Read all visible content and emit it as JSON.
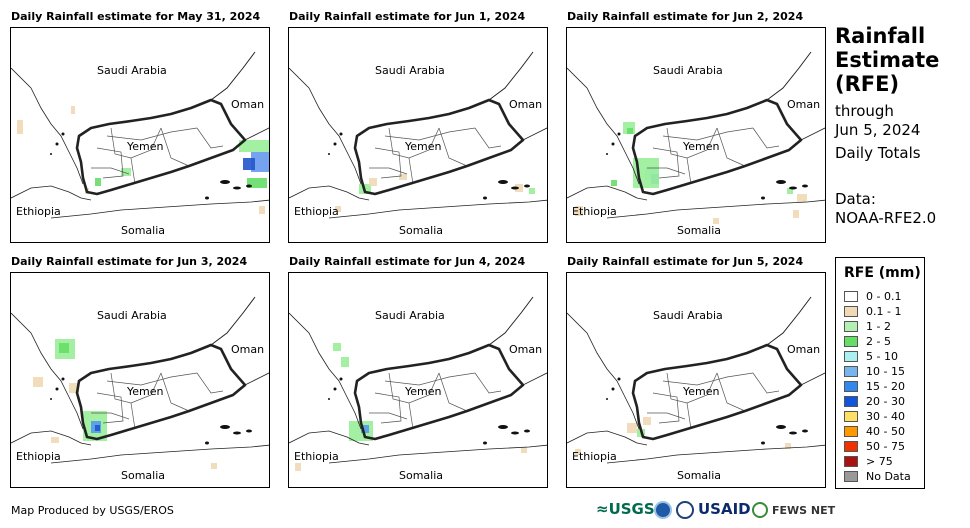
{
  "panels": [
    {
      "title": "Daily Rainfall estimate for May 31, 2024",
      "rain": [
        {
          "x": 240,
          "y": 124,
          "c": "#6699ee",
          "w": 22,
          "h": 20
        },
        {
          "x": 232,
          "y": 130,
          "c": "#2255cc",
          "w": 12,
          "h": 12
        },
        {
          "x": 228,
          "y": 112,
          "c": "#99ee99",
          "w": 30,
          "h": 12
        },
        {
          "x": 236,
          "y": 150,
          "c": "#66dd66",
          "w": 20,
          "h": 10
        },
        {
          "x": 84,
          "y": 150,
          "c": "#66dd66",
          "w": 6,
          "h": 8
        },
        {
          "x": 110,
          "y": 140,
          "c": "#99ee99",
          "w": 10,
          "h": 8
        },
        {
          "x": 6,
          "y": 92,
          "c": "#f0d9b5",
          "w": 6,
          "h": 14
        },
        {
          "x": 60,
          "y": 78,
          "c": "#f0d9b5",
          "w": 4,
          "h": 8
        },
        {
          "x": 74,
          "y": 160,
          "c": "#f0d9b5",
          "w": 4,
          "h": 6
        },
        {
          "x": 248,
          "y": 178,
          "c": "#f0d9b5",
          "w": 6,
          "h": 8
        }
      ]
    },
    {
      "title": "Daily Rainfall estimate for Jun 1, 2024",
      "rain": [
        {
          "x": 70,
          "y": 156,
          "c": "#99ee99",
          "w": 12,
          "h": 10
        },
        {
          "x": 80,
          "y": 150,
          "c": "#f0d9b5",
          "w": 8,
          "h": 8
        },
        {
          "x": 110,
          "y": 146,
          "c": "#f0d9b5",
          "w": 8,
          "h": 6
        },
        {
          "x": 240,
          "y": 160,
          "c": "#99ee99",
          "w": 6,
          "h": 6
        },
        {
          "x": 226,
          "y": 156,
          "c": "#f0d9b5",
          "w": 8,
          "h": 8
        },
        {
          "x": 46,
          "y": 178,
          "c": "#f0d9b5",
          "w": 6,
          "h": 6
        }
      ]
    },
    {
      "title": "Daily Rainfall estimate for Jun 2, 2024",
      "rain": [
        {
          "x": 78,
          "y": 140,
          "c": "#99eeee",
          "w": 14,
          "h": 12
        },
        {
          "x": 84,
          "y": 146,
          "c": "#5599ee",
          "w": 8,
          "h": 10
        },
        {
          "x": 66,
          "y": 130,
          "c": "#99ee99",
          "w": 26,
          "h": 30
        },
        {
          "x": 56,
          "y": 94,
          "c": "#99ee99",
          "w": 12,
          "h": 12
        },
        {
          "x": 60,
          "y": 100,
          "c": "#66dd66",
          "w": 6,
          "h": 6
        },
        {
          "x": 44,
          "y": 152,
          "c": "#66dd66",
          "w": 6,
          "h": 6
        },
        {
          "x": 8,
          "y": 178,
          "c": "#f0d9b5",
          "w": 8,
          "h": 10
        },
        {
          "x": 220,
          "y": 160,
          "c": "#99ee99",
          "w": 6,
          "h": 6
        },
        {
          "x": 230,
          "y": 166,
          "c": "#f0d9b5",
          "w": 10,
          "h": 8
        },
        {
          "x": 146,
          "y": 190,
          "c": "#f0d9b5",
          "w": 6,
          "h": 6
        },
        {
          "x": 226,
          "y": 182,
          "c": "#f0d9b5",
          "w": 6,
          "h": 8
        }
      ]
    },
    {
      "title": "Daily Rainfall estimate for Jun 3, 2024",
      "rain": [
        {
          "x": 72,
          "y": 138,
          "c": "#99ee99",
          "w": 24,
          "h": 30
        },
        {
          "x": 80,
          "y": 148,
          "c": "#5599ee",
          "w": 10,
          "h": 12
        },
        {
          "x": 84,
          "y": 152,
          "c": "#2255cc",
          "w": 5,
          "h": 6
        },
        {
          "x": 44,
          "y": 66,
          "c": "#99ee99",
          "w": 20,
          "h": 20
        },
        {
          "x": 48,
          "y": 70,
          "c": "#66dd66",
          "w": 10,
          "h": 10
        },
        {
          "x": 22,
          "y": 104,
          "c": "#f0d9b5",
          "w": 10,
          "h": 10
        },
        {
          "x": 58,
          "y": 110,
          "c": "#f0d9b5",
          "w": 10,
          "h": 10
        },
        {
          "x": 40,
          "y": 164,
          "c": "#f0d9b5",
          "w": 8,
          "h": 6
        },
        {
          "x": 200,
          "y": 190,
          "c": "#f0d9b5",
          "w": 6,
          "h": 6
        }
      ]
    },
    {
      "title": "Daily Rainfall estimate for Jun 4, 2024",
      "rain": [
        {
          "x": 60,
          "y": 148,
          "c": "#99ee99",
          "w": 24,
          "h": 20
        },
        {
          "x": 72,
          "y": 152,
          "c": "#5599ee",
          "w": 8,
          "h": 8
        },
        {
          "x": 44,
          "y": 70,
          "c": "#99ee99",
          "w": 8,
          "h": 8
        },
        {
          "x": 52,
          "y": 84,
          "c": "#99ee99",
          "w": 8,
          "h": 10
        },
        {
          "x": 6,
          "y": 190,
          "c": "#f0d9b5",
          "w": 6,
          "h": 8
        },
        {
          "x": 232,
          "y": 174,
          "c": "#f0d9b5",
          "w": 6,
          "h": 6
        }
      ]
    },
    {
      "title": "Daily Rainfall estimate for Jun 5, 2024",
      "rain": [
        {
          "x": 60,
          "y": 150,
          "c": "#f0d9b5",
          "w": 10,
          "h": 10
        },
        {
          "x": 70,
          "y": 156,
          "c": "#99ee99",
          "w": 8,
          "h": 8
        },
        {
          "x": 76,
          "y": 144,
          "c": "#f0d9b5",
          "w": 8,
          "h": 8
        },
        {
          "x": 8,
          "y": 176,
          "c": "#f0d9b5",
          "w": 6,
          "h": 6
        },
        {
          "x": 218,
          "y": 170,
          "c": "#f0d9b5",
          "w": 6,
          "h": 6
        }
      ]
    }
  ],
  "map_labels": {
    "saudi": "Saudi Arabia",
    "yemen": "Yemen",
    "oman": "Oman",
    "ethiopia": "Ethiopia",
    "somalia": "Somalia"
  },
  "title": {
    "line1": "Rainfall",
    "line2": "Estimate",
    "line3": "(RFE)",
    "through": "through",
    "date": "Jun 5, 2024",
    "totals": "Daily Totals",
    "data_label": "Data:",
    "data_source": "NOAA-RFE2.0"
  },
  "legend": {
    "title": "RFE (mm)",
    "items": [
      {
        "label": "0 - 0.1",
        "color": "#ffffff"
      },
      {
        "label": "0.1 - 1",
        "color": "#f0d9b5"
      },
      {
        "label": "1 - 2",
        "color": "#b3f0b3"
      },
      {
        "label": "2 - 5",
        "color": "#66dd66"
      },
      {
        "label": "5 - 10",
        "color": "#aaf0f0"
      },
      {
        "label": "10 - 15",
        "color": "#77b5ee"
      },
      {
        "label": "15 - 20",
        "color": "#3388ee"
      },
      {
        "label": "20 - 30",
        "color": "#1155dd"
      },
      {
        "label": "30 - 40",
        "color": "#ffe066"
      },
      {
        "label": "40 - 50",
        "color": "#ff9900"
      },
      {
        "label": "50 - 75",
        "color": "#ee3300"
      },
      {
        "label": "> 75",
        "color": "#aa1111"
      },
      {
        "label": "No Data",
        "color": "#999999"
      }
    ]
  },
  "credit": "Map Produced by USGS/EROS",
  "logos": {
    "usgs": "≈USGS",
    "usaid": "USAID",
    "fews": "FEWS NET"
  }
}
